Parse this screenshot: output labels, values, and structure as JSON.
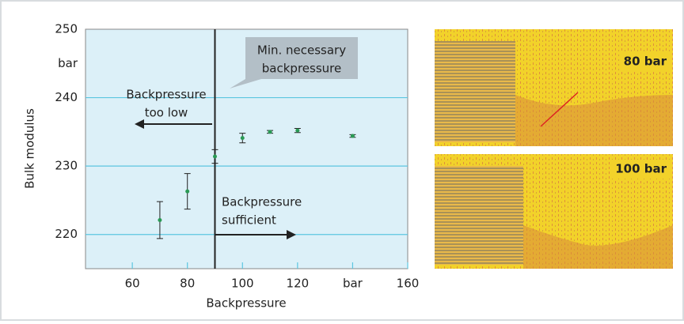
{
  "chart_data": {
    "type": "scatter",
    "x_label": "Backpressure",
    "y_label": "Bulk modulus",
    "x": [
      70,
      80,
      90,
      100,
      110,
      120,
      140
    ],
    "series": [
      {
        "color": "#2a9a55",
        "values": [
          222.1,
          226.3,
          231.4,
          234.1,
          235.0,
          235.2,
          234.4
        ],
        "errors": [
          2.7,
          2.6,
          1.0,
          0.7,
          0.2,
          0.3,
          0.2
        ]
      }
    ],
    "xlim": [
      43,
      160
    ],
    "ylim": [
      215,
      250
    ],
    "xticks": [
      60,
      80,
      100,
      120,
      {
        "value": 140,
        "label": "bar"
      },
      160
    ],
    "yticks": [
      220,
      230,
      240,
      {
        "value": 245,
        "label": "bar"
      },
      250
    ],
    "grid": true,
    "threshold_x": 90,
    "annotations": [
      "Min. necessary",
      "backpressure",
      "Backpressure",
      "too low",
      "Backpressure",
      "sufficient"
    ]
  },
  "panels": [
    {
      "label": "80 bar"
    },
    {
      "label": "100 bar"
    }
  ]
}
